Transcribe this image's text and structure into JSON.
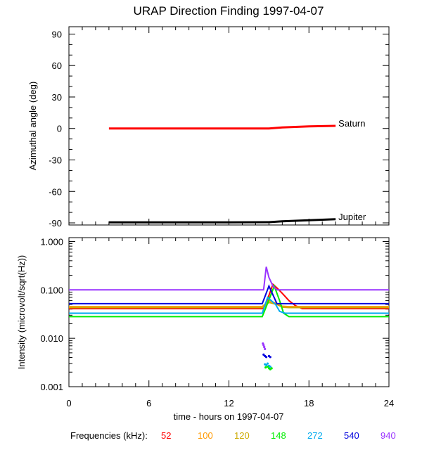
{
  "chart_data": [
    {
      "type": "line",
      "panel": "azimuth",
      "title": "URAP Direction Finding  1997-04-07",
      "ylabel": "Azimuthal angle (deg)",
      "ylim": [
        -92,
        97
      ],
      "yticks": [
        90,
        60,
        30,
        0,
        -30,
        -60,
        -90
      ],
      "xlim": [
        0,
        24
      ],
      "series": [
        {
          "name": "Saturn",
          "color": "#ff0000",
          "x": [
            3,
            6,
            9,
            12,
            15,
            16,
            18,
            20
          ],
          "y": [
            0,
            0,
            0,
            0,
            0,
            1,
            2,
            2.5
          ]
        },
        {
          "name": "Jupiter",
          "color": "#000000",
          "x": [
            3,
            6,
            9,
            12,
            15,
            16,
            18,
            20
          ],
          "y": [
            -89.5,
            -89.5,
            -89.5,
            -89.5,
            -89.3,
            -88.5,
            -87.5,
            -86.5
          ]
        }
      ]
    },
    {
      "type": "line",
      "panel": "intensity",
      "ylabel": "Intensity (microvolt/sqrt(Hz))",
      "yscale": "log",
      "ylim": [
        0.001,
        1.2
      ],
      "yticks": [
        1.0,
        0.1,
        0.01,
        0.001
      ],
      "ytick_labels": [
        "1.000",
        "0.100",
        "0.010",
        "0.001"
      ],
      "xlim": [
        0,
        24
      ],
      "xticks": [
        0,
        6,
        12,
        18,
        24
      ],
      "xlabel": "time - hours on 1997-04-07",
      "legend_title": "Frequencies (kHz):",
      "series": [
        {
          "name": "52",
          "color": "#ff0000",
          "x": [
            0,
            14.5,
            14.7,
            15.3,
            15.6,
            16.0,
            16.5,
            17.0,
            17.5,
            24
          ],
          "y": [
            0.041,
            0.041,
            0.046,
            0.13,
            0.11,
            0.085,
            0.06,
            0.047,
            0.041,
            0.041
          ]
        },
        {
          "name": "100",
          "color": "#ff9900",
          "x": [
            0,
            14.5,
            15.0,
            15.6,
            16.0,
            16.5,
            24
          ],
          "y": [
            0.045,
            0.045,
            0.06,
            0.052,
            0.046,
            0.045,
            0.045
          ]
        },
        {
          "name": "120",
          "color": "#ccaa00",
          "x": [
            0,
            14.5,
            15.0,
            15.6,
            16.0,
            16.5,
            24
          ],
          "y": [
            0.043,
            0.043,
            0.055,
            0.05,
            0.044,
            0.043,
            0.043
          ]
        },
        {
          "name": "148",
          "color": "#00ee00",
          "x": [
            0,
            14.5,
            14.8,
            15.4,
            15.8,
            16.1,
            16.5,
            24
          ],
          "y": [
            0.028,
            0.028,
            0.045,
            0.12,
            0.06,
            0.033,
            0.028,
            0.028
          ]
        },
        {
          "name": "272",
          "color": "#00aaee",
          "x": [
            0,
            14.5,
            14.9,
            15.5,
            15.8,
            16.2,
            24
          ],
          "y": [
            0.033,
            0.033,
            0.07,
            0.05,
            0.036,
            0.033,
            0.033
          ]
        },
        {
          "name": "540",
          "color": "#0000dd",
          "x": [
            0,
            14.5,
            15.0,
            15.6,
            24
          ],
          "y": [
            0.052,
            0.052,
            0.12,
            0.052,
            0.052
          ]
        },
        {
          "name": "940",
          "color": "#9933ff",
          "x": [
            0,
            14.6,
            14.8,
            15.0,
            15.3,
            15.6,
            24
          ],
          "y": [
            0.1,
            0.1,
            0.3,
            0.18,
            0.12,
            0.1,
            0.1
          ]
        }
      ],
      "bursts": [
        {
          "color": "#9933ff",
          "x": [
            14.55,
            14.6,
            14.65,
            14.7
          ],
          "y": [
            0.0078,
            0.0072,
            0.0066,
            0.006
          ]
        },
        {
          "color": "#0000dd",
          "x": [
            14.6,
            14.7,
            14.8,
            15.0,
            15.1
          ],
          "y": [
            0.0046,
            0.0043,
            0.0041,
            0.0043,
            0.0041
          ]
        },
        {
          "color": "#00aaee",
          "x": [
            14.7,
            14.8,
            14.9,
            15.0,
            15.1
          ],
          "y": [
            0.0029,
            0.0028,
            0.003,
            0.0027,
            0.0026
          ]
        },
        {
          "color": "#00ee00",
          "x": [
            14.75,
            14.9,
            15.0,
            15.1,
            15.2
          ],
          "y": [
            0.0025,
            0.0026,
            0.0024,
            0.0023,
            0.0024
          ]
        }
      ]
    }
  ]
}
